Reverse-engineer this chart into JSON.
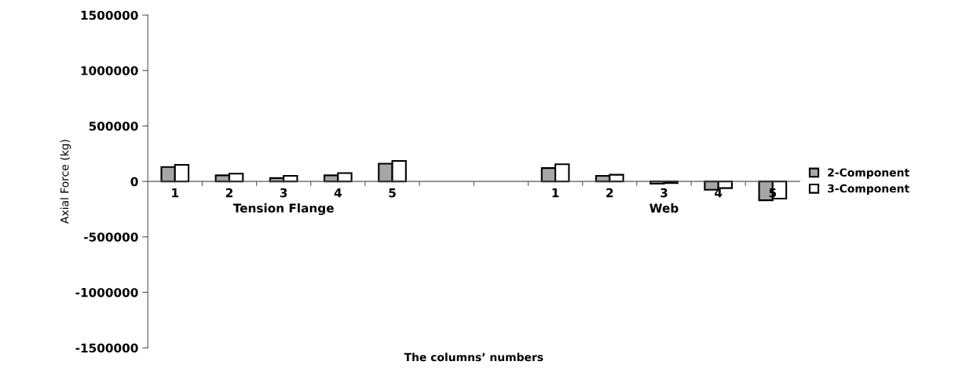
{
  "chart_data": {
    "type": "bar",
    "xlabel": "The columns’ numbers",
    "ylabel": "Axial Force (kg)",
    "categories": [
      "1",
      "2",
      "3",
      "4",
      "5",
      null,
      null,
      "1",
      "2",
      "3",
      "4",
      "5"
    ],
    "series": [
      {
        "name": "2-Component",
        "color": "#a6a6a6",
        "values": [
          130000,
          55000,
          30000,
          55000,
          160000,
          null,
          null,
          120000,
          50000,
          -20000,
          -75000,
          -170000
        ]
      },
      {
        "name": "3-Component",
        "color": "#ffffff",
        "values": [
          150000,
          70000,
          50000,
          75000,
          185000,
          null,
          null,
          155000,
          60000,
          -15000,
          -60000,
          -155000
        ]
      }
    ],
    "ylim": [
      -1500000,
      1500000
    ],
    "yticks": [
      -1500000,
      -1000000,
      -500000,
      0,
      500000,
      1000000,
      1500000
    ],
    "annotations": [
      "Tension Flange",
      "Web"
    ],
    "legend": "right",
    "grid": false
  }
}
